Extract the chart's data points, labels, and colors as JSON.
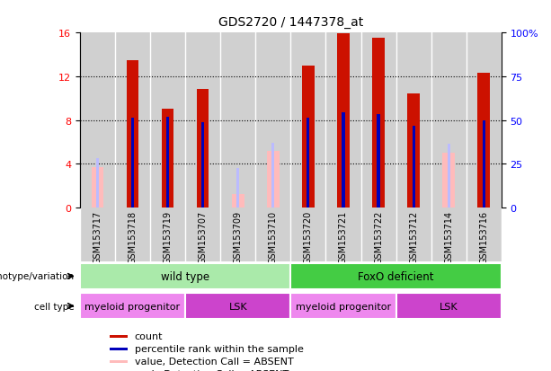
{
  "title": "GDS2720 / 1447378_at",
  "samples": [
    "GSM153717",
    "GSM153718",
    "GSM153719",
    "GSM153707",
    "GSM153709",
    "GSM153710",
    "GSM153720",
    "GSM153721",
    "GSM153722",
    "GSM153712",
    "GSM153714",
    "GSM153716"
  ],
  "count_values": [
    null,
    13.5,
    9.0,
    10.8,
    null,
    null,
    13.0,
    15.9,
    15.5,
    10.4,
    null,
    12.3
  ],
  "count_absent": [
    3.7,
    null,
    null,
    null,
    1.2,
    5.2,
    null,
    null,
    null,
    null,
    5.0,
    null
  ],
  "percentile_values": [
    null,
    8.2,
    8.3,
    7.8,
    null,
    null,
    8.2,
    8.7,
    8.5,
    7.5,
    null,
    8.0
  ],
  "percentile_absent": [
    4.5,
    null,
    null,
    null,
    3.6,
    5.9,
    null,
    null,
    null,
    null,
    5.8,
    null
  ],
  "ylim": [
    0,
    16
  ],
  "yticks": [
    0,
    4,
    8,
    12,
    16
  ],
  "y2ticks": [
    0,
    25,
    50,
    75,
    100
  ],
  "y2labels": [
    "0",
    "25",
    "50",
    "75",
    "100%"
  ],
  "color_count": "#cc1100",
  "color_percentile": "#0000bb",
  "color_absent_count": "#ffbbbb",
  "color_absent_rank": "#bbbbff",
  "genotype_groups": [
    {
      "label": "wild type",
      "start": 0,
      "end": 6,
      "color": "#aaeaaa"
    },
    {
      "label": "FoxO deficient",
      "start": 6,
      "end": 12,
      "color": "#44cc44"
    }
  ],
  "celltype_groups": [
    {
      "label": "myeloid progenitor",
      "start": 0,
      "end": 3,
      "color": "#ee88ee"
    },
    {
      "label": "LSK",
      "start": 3,
      "end": 6,
      "color": "#cc44cc"
    },
    {
      "label": "myeloid progenitor",
      "start": 6,
      "end": 9,
      "color": "#ee88ee"
    },
    {
      "label": "LSK",
      "start": 9,
      "end": 12,
      "color": "#cc44cc"
    }
  ],
  "legend_items": [
    {
      "label": "count",
      "color": "#cc1100"
    },
    {
      "label": "percentile rank within the sample",
      "color": "#0000bb"
    },
    {
      "label": "value, Detection Call = ABSENT",
      "color": "#ffbbbb"
    },
    {
      "label": "rank, Detection Call = ABSENT",
      "color": "#bbbbff"
    }
  ],
  "bg_color": "#ffffff",
  "col_bg": "#d0d0d0"
}
